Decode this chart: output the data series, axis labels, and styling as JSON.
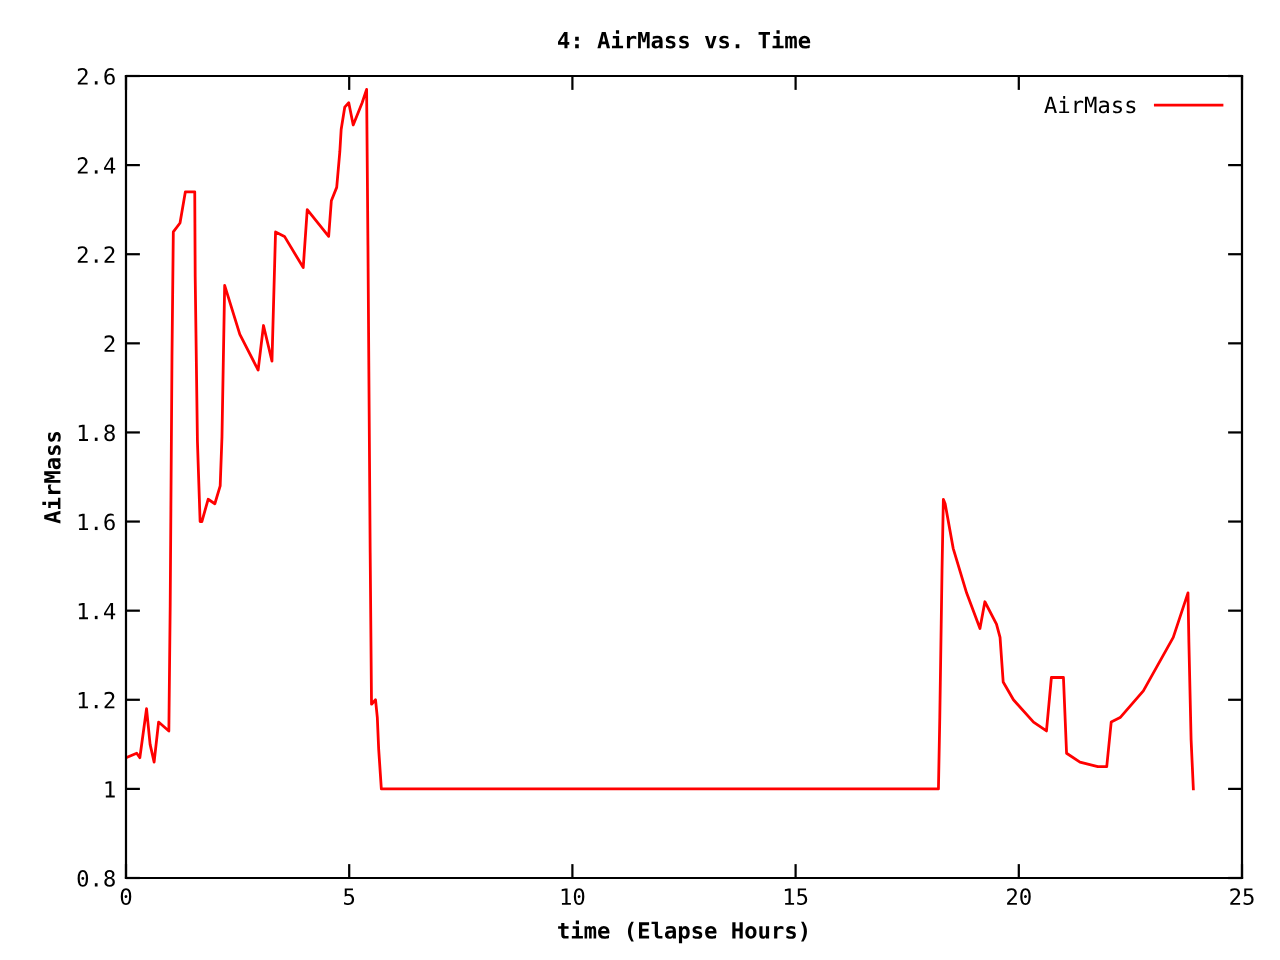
{
  "chart_data": {
    "type": "line",
    "title": "4: AirMass vs. Time",
    "xlabel": "time (Elapse Hours)",
    "ylabel": "AirMass",
    "xlim": [
      0,
      25
    ],
    "ylim": [
      0.8,
      2.6
    ],
    "xticks": [
      0,
      5,
      10,
      15,
      20,
      25
    ],
    "yticks": [
      0.8,
      1,
      1.2,
      1.4,
      1.6,
      1.8,
      2,
      2.2,
      2.4,
      2.6
    ],
    "grid": false,
    "legend": "top right",
    "series": [
      {
        "name": "AirMass",
        "color": "#ff0000",
        "x": [
          0,
          0.24,
          0.31,
          0.46,
          0.54,
          0.63,
          0.73,
          0.96,
          0.99,
          1.03,
          1.06,
          1.21,
          1.33,
          1.54,
          1.55,
          1.6,
          1.66,
          1.7,
          1.84,
          1.99,
          2.11,
          2.15,
          2.21,
          2.55,
          2.96,
          3.08,
          3.27,
          3.35,
          3.55,
          3.97,
          4.06,
          4.54,
          4.6,
          4.72,
          4.79,
          4.82,
          4.9,
          4.99,
          5.09,
          5.29,
          5.39,
          5.42,
          5.47,
          5.5,
          5.59,
          5.63,
          5.66,
          5.72,
          18.2,
          18.23,
          18.28,
          18.31,
          18.35,
          18.53,
          18.83,
          19.13,
          19.24,
          19.5,
          19.58,
          19.65,
          19.88,
          20.33,
          20.62,
          20.73,
          21.0,
          21.07,
          21.37,
          21.77,
          21.97,
          22.07,
          22.27,
          22.79,
          23.46,
          23.79,
          23.81,
          23.86,
          23.91
        ],
        "values": [
          1.07,
          1.08,
          1.07,
          1.18,
          1.1,
          1.06,
          1.15,
          1.13,
          1.41,
          1.97,
          2.25,
          2.27,
          2.34,
          2.34,
          2.15,
          1.78,
          1.6,
          1.6,
          1.65,
          1.64,
          1.68,
          1.79,
          2.13,
          2.02,
          1.94,
          2.04,
          1.96,
          2.25,
          2.24,
          2.17,
          2.3,
          2.24,
          2.32,
          2.35,
          2.43,
          2.48,
          2.53,
          2.54,
          2.49,
          2.54,
          2.57,
          2.22,
          1.53,
          1.19,
          1.2,
          1.16,
          1.09,
          1.0,
          1.0,
          1.16,
          1.49,
          1.65,
          1.64,
          1.54,
          1.44,
          1.36,
          1.42,
          1.37,
          1.34,
          1.24,
          1.2,
          1.15,
          1.13,
          1.25,
          1.25,
          1.08,
          1.06,
          1.05,
          1.05,
          1.15,
          1.16,
          1.22,
          1.34,
          1.44,
          1.33,
          1.11,
          1.0
        ]
      }
    ]
  }
}
